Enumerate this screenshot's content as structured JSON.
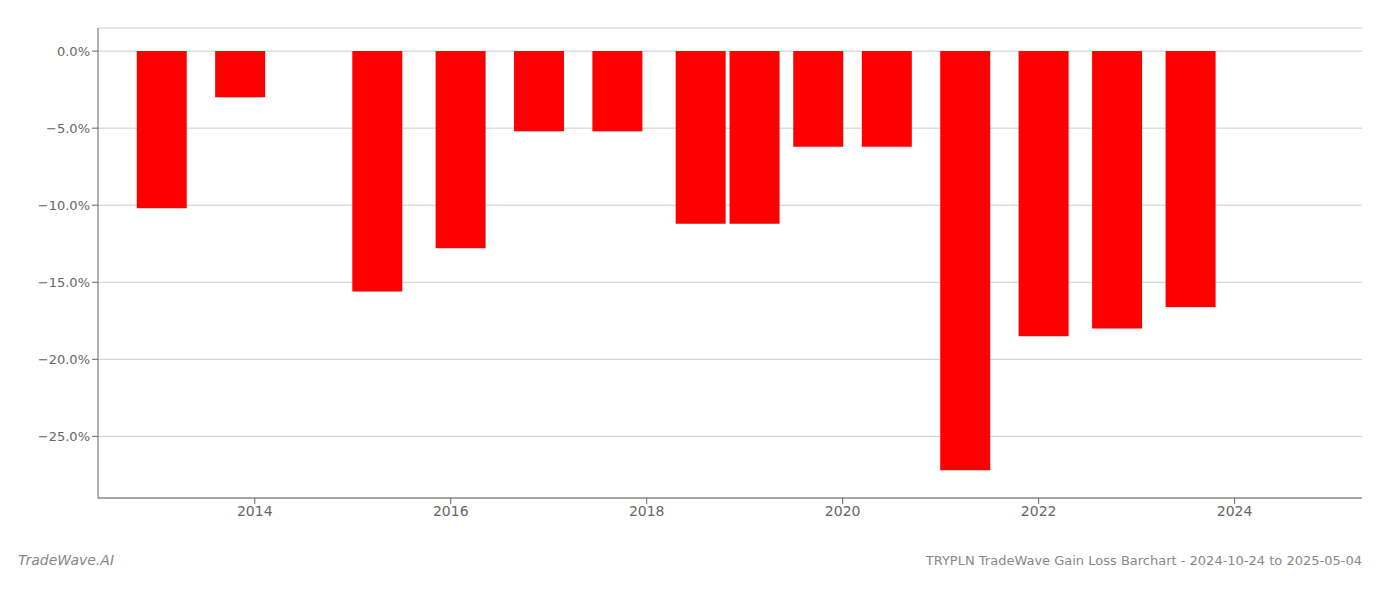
{
  "chart_data": {
    "type": "bar",
    "title": "TRYPLN TradeWave Gain Loss Barchart - 2024-10-24 to 2025-05-04",
    "annotations": [
      "TradeWave.AI"
    ],
    "x": [
      2013.05,
      2013.85,
      2015.25,
      2016.1,
      2016.9,
      2017.7,
      2018.55,
      2019.1,
      2019.75,
      2020.45,
      2021.25,
      2022.05,
      2022.8,
      2023.55
    ],
    "values": [
      -10.2,
      -3.0,
      -15.6,
      -12.8,
      -5.2,
      -5.2,
      -11.2,
      -11.2,
      -6.2,
      -6.2,
      -27.2,
      -18.5,
      -18.0,
      -16.6
    ],
    "color": "#ff0000",
    "xlim": [
      2012.4,
      2025.3
    ],
    "xticks": [
      2014,
      2016,
      2018,
      2020,
      2022,
      2024
    ],
    "ylim": [
      -29,
      1.5
    ],
    "yticks": [
      {
        "value": 0.0,
        "label": "0.0%"
      },
      {
        "value": -5.0,
        "label": "−5.0%"
      },
      {
        "value": -10.0,
        "label": "−10.0%"
      },
      {
        "value": -15.0,
        "label": "−15.0%"
      },
      {
        "value": -20.0,
        "label": "−20.0%"
      },
      {
        "value": -25.0,
        "label": "−25.0%"
      }
    ],
    "grid": true
  }
}
